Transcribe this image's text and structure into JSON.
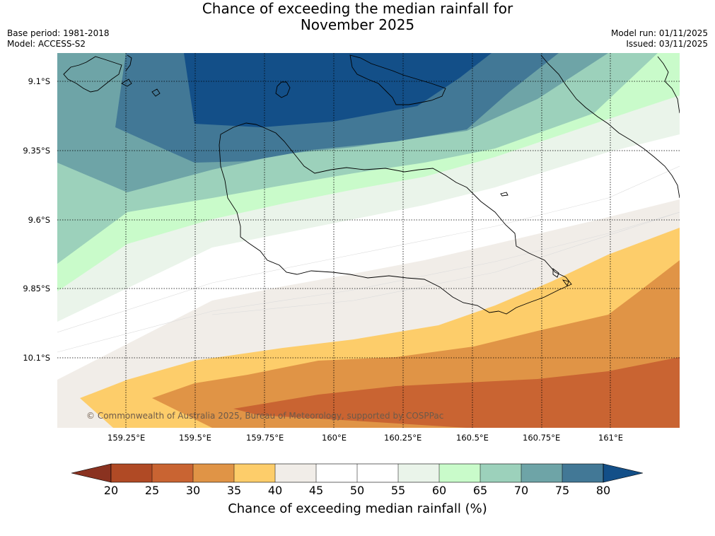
{
  "header": {
    "title_line1": "Chance of exceeding the median rainfall for",
    "title_line2": "November 2025",
    "base_period": "Base period: 1981-2018",
    "model": "Model: ACCESS-S2",
    "model_run": "Model run: 01/11/2025",
    "issued": "Issued: 03/11/2025"
  },
  "map": {
    "lat_labels": [
      "9.1°S",
      "9.35°S",
      "9.6°S",
      "9.85°S",
      "10.1°S"
    ],
    "lon_labels": [
      "159.25°E",
      "159.5°E",
      "159.75°E",
      "160°E",
      "160.25°E",
      "160.5°E",
      "160.75°E",
      "161°E"
    ],
    "copyright": "© Commonwealth of Australia 2025, Bureau of Meteorology, supported by COSPPac"
  },
  "colors": {
    "band_20_25": "#b04a25",
    "band_25_30": "#c96432",
    "band_30_35": "#e09446",
    "band_35_40": "#fdcd6a",
    "band_40_45": "#f1ede8",
    "band_45_50": "#ffffff",
    "band_50_55": "#ffffff",
    "band_55_60": "#eaf4ea",
    "band_60_65": "#c9fbca",
    "band_65_70": "#9cd1bb",
    "band_70_75": "#6ea4a7",
    "band_75_80": "#427896",
    "band_80_plus": "#134f88",
    "band_below_20": "#8a3220"
  },
  "colorbar": {
    "ticks": [
      "20",
      "25",
      "30",
      "35",
      "40",
      "45",
      "50",
      "55",
      "60",
      "65",
      "70",
      "75",
      "80"
    ],
    "label": "Chance of exceeding median rainfall (%)"
  }
}
